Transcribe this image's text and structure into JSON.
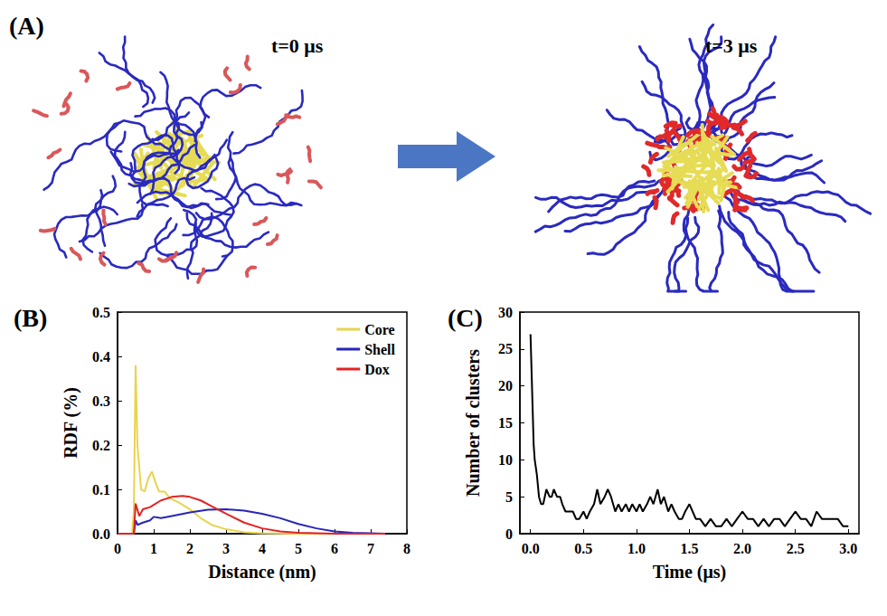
{
  "panel_a": {
    "panel_label": "(A)",
    "snapshots": [
      "t=0 μs",
      "t=3 μs"
    ]
  },
  "chart_data": [
    {
      "type": "line",
      "panel_label": "(B)",
      "xlabel": "Distance (nm)",
      "ylabel": "RDF (%)",
      "xlim": [
        0,
        8
      ],
      "ylim": [
        0,
        0.5
      ],
      "xticks": [
        0,
        1,
        2,
        3,
        4,
        5,
        6,
        7,
        8
      ],
      "yticks": [
        {
          "value": 0,
          "label": "0.0"
        },
        0.1,
        0.2,
        0.3,
        0.4,
        0.5
      ],
      "grid": false,
      "legend": "upper right",
      "series": [
        {
          "name": "Core",
          "color": "#e8d44d",
          "x": [
            0,
            0.4,
            0.45,
            0.5,
            0.55,
            0.65,
            0.75,
            0.85,
            0.95,
            1.05,
            1.15,
            1.3,
            1.45,
            1.7,
            2.0,
            2.3,
            2.6,
            3.0,
            3.5,
            4.0,
            5.0,
            7.4
          ],
          "values": [
            0,
            0,
            0.05,
            0.38,
            0.2,
            0.1,
            0.095,
            0.125,
            0.14,
            0.115,
            0.095,
            0.095,
            0.08,
            0.07,
            0.055,
            0.035,
            0.02,
            0.01,
            0.003,
            0.001,
            0,
            0
          ]
        },
        {
          "name": "Shell",
          "color": "#2626b8",
          "x": [
            0,
            0.45,
            0.5,
            0.55,
            0.7,
            0.9,
            1.0,
            1.2,
            1.5,
            2.0,
            2.5,
            3.0,
            3.5,
            4.0,
            4.5,
            5.0,
            5.5,
            6.0,
            6.5,
            7.0,
            7.4
          ],
          "values": [
            0,
            0,
            0.03,
            0.02,
            0.025,
            0.03,
            0.038,
            0.035,
            0.04,
            0.048,
            0.054,
            0.055,
            0.052,
            0.045,
            0.035,
            0.022,
            0.012,
            0.005,
            0.002,
            0.001,
            0
          ]
        },
        {
          "name": "Dox",
          "color": "#e02424",
          "x": [
            0,
            0.45,
            0.5,
            0.6,
            0.7,
            0.9,
            1.0,
            1.2,
            1.5,
            1.8,
            2.0,
            2.3,
            2.6,
            3.0,
            3.5,
            4.0,
            4.5,
            5.0,
            5.5,
            6.0,
            7.4
          ],
          "values": [
            0,
            0,
            0.068,
            0.04,
            0.055,
            0.06,
            0.065,
            0.075,
            0.083,
            0.085,
            0.083,
            0.075,
            0.062,
            0.045,
            0.025,
            0.012,
            0.005,
            0.002,
            0.001,
            0,
            0
          ]
        }
      ]
    },
    {
      "type": "line",
      "panel_label": "(C)",
      "xlabel": "Time (μs)",
      "ylabel": "Number of clusters",
      "xlim": [
        -0.1,
        3.1
      ],
      "ylim": [
        0,
        30
      ],
      "xticks": [
        {
          "value": 0,
          "label": "0.0"
        },
        0.5,
        {
          "value": 1,
          "label": "1.0"
        },
        1.5,
        {
          "value": 2,
          "label": "2.0"
        },
        2.5,
        {
          "value": 3,
          "label": "3.0"
        }
      ],
      "yticks": [
        0,
        5,
        10,
        15,
        20,
        25,
        30
      ],
      "grid": false,
      "color": "#000000",
      "x": [
        0,
        0.01,
        0.02,
        0.03,
        0.04,
        0.05,
        0.06,
        0.08,
        0.1,
        0.12,
        0.15,
        0.18,
        0.2,
        0.22,
        0.25,
        0.28,
        0.3,
        0.33,
        0.36,
        0.4,
        0.43,
        0.46,
        0.5,
        0.53,
        0.56,
        0.6,
        0.63,
        0.66,
        0.7,
        0.73,
        0.76,
        0.8,
        0.83,
        0.86,
        0.9,
        0.93,
        0.96,
        1.0,
        1.03,
        1.06,
        1.1,
        1.13,
        1.16,
        1.2,
        1.23,
        1.26,
        1.3,
        1.33,
        1.36,
        1.4,
        1.43,
        1.46,
        1.5,
        1.53,
        1.56,
        1.6,
        1.65,
        1.7,
        1.75,
        1.8,
        1.85,
        1.9,
        1.95,
        2.0,
        2.05,
        2.1,
        2.15,
        2.2,
        2.25,
        2.3,
        2.35,
        2.4,
        2.45,
        2.5,
        2.55,
        2.6,
        2.65,
        2.7,
        2.75,
        2.8,
        2.85,
        2.9,
        2.95,
        3.0
      ],
      "values": [
        27,
        22,
        17,
        12,
        10,
        9,
        8,
        5,
        4,
        4,
        6,
        5,
        5,
        6,
        5,
        5,
        4,
        3,
        3,
        3,
        2,
        2,
        3,
        2,
        3,
        4,
        6,
        4,
        5,
        6,
        5,
        3,
        4,
        3,
        4,
        3,
        4,
        3,
        4,
        3,
        4,
        5,
        4,
        6,
        4,
        5,
        3,
        4,
        3,
        2,
        2,
        3,
        4,
        3,
        2,
        2,
        1,
        2,
        1,
        1,
        2,
        1,
        2,
        3,
        2,
        2,
        1,
        2,
        1,
        2,
        2,
        1,
        2,
        3,
        2,
        2,
        1,
        3,
        2,
        2,
        2,
        2,
        1,
        1
      ]
    }
  ]
}
